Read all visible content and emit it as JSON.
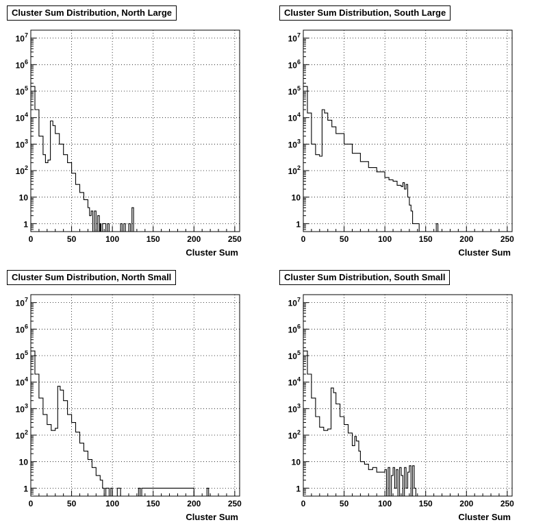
{
  "footer_text": "",
  "chart_data": [
    {
      "type": "line",
      "title": "Cluster Sum Distribution, North Large",
      "xlabel": "Cluster Sum",
      "ylabel": "",
      "xlim": [
        0,
        256
      ],
      "ylim": [
        0.5,
        20000000
      ],
      "yscale": "log",
      "grid": true,
      "x_ticks": [
        "0",
        "50",
        "100",
        "150",
        "200",
        "250"
      ],
      "y_ticks": [
        "1",
        "10",
        "10^2",
        "10^3",
        "10^4",
        "10^5",
        "10^6",
        "10^7"
      ],
      "series": [
        {
          "x": [
            0,
            5,
            10,
            15,
            18,
            21,
            24,
            27,
            30,
            35,
            40,
            45,
            50,
            55,
            60,
            65,
            70,
            72,
            74,
            76,
            78,
            80,
            82,
            84,
            85,
            86,
            88,
            90,
            92,
            94,
            96,
            98,
            100,
            102,
            104,
            106,
            108,
            110,
            112,
            114,
            116,
            118,
            120,
            122,
            124,
            126
          ],
          "y": [
            150000,
            20000,
            2000,
            400,
            200,
            250,
            7500,
            5000,
            2500,
            1000,
            400,
            200,
            80,
            30,
            15,
            8,
            4,
            2,
            3,
            0.5,
            3,
            0.5,
            2,
            0.5,
            1,
            0.5,
            1,
            1,
            0.5,
            1,
            0.5,
            0.5,
            0.5,
            0.5,
            0.5,
            0.5,
            0.5,
            1,
            0.5,
            1,
            0.5,
            0.5,
            1,
            0.5,
            4,
            0.5
          ]
        }
      ]
    },
    {
      "type": "line",
      "title": "Cluster Sum Distribution, South Large",
      "xlabel": "Cluster Sum",
      "ylabel": "",
      "xlim": [
        0,
        256
      ],
      "ylim": [
        0.5,
        20000000
      ],
      "yscale": "log",
      "grid": true,
      "x_ticks": [
        "0",
        "50",
        "100",
        "150",
        "200",
        "250"
      ],
      "y_ticks": [
        "1",
        "10",
        "10^2",
        "10^3",
        "10^4",
        "10^5",
        "10^6",
        "10^7"
      ],
      "series": [
        {
          "x": [
            0,
            5,
            10,
            15,
            20,
            23,
            26,
            30,
            35,
            40,
            50,
            60,
            70,
            80,
            90,
            100,
            105,
            110,
            115,
            120,
            122,
            124,
            126,
            128,
            130,
            132,
            134,
            136,
            138,
            140,
            142,
            145,
            150,
            155,
            160,
            163,
            165
          ],
          "y": [
            150000,
            15000,
            1000,
            400,
            350,
            20000,
            15000,
            8000,
            4500,
            2500,
            1000,
            450,
            220,
            130,
            90,
            55,
            45,
            40,
            28,
            25,
            35,
            20,
            30,
            10,
            5,
            3,
            1,
            1,
            1,
            1,
            0.5,
            0.5,
            0.5,
            0.5,
            0.5,
            1,
            0.5
          ]
        }
      ]
    },
    {
      "type": "line",
      "title": "Cluster Sum Distribution, North Small",
      "xlabel": "Cluster Sum",
      "ylabel": "",
      "xlim": [
        0,
        256
      ],
      "ylim": [
        0.5,
        20000000
      ],
      "yscale": "log",
      "grid": true,
      "x_ticks": [
        "0",
        "50",
        "100",
        "150",
        "200",
        "250"
      ],
      "y_ticks": [
        "1",
        "10",
        "10^2",
        "10^3",
        "10^4",
        "10^5",
        "10^6",
        "10^7"
      ],
      "series": [
        {
          "x": [
            0,
            5,
            10,
            15,
            20,
            25,
            30,
            33,
            36,
            40,
            45,
            50,
            55,
            60,
            65,
            70,
            75,
            80,
            85,
            88,
            90,
            92,
            94,
            96,
            98,
            100,
            102,
            104,
            106,
            110,
            115,
            130,
            132,
            134,
            136,
            200,
            214,
            216,
            218
          ],
          "y": [
            150000,
            20000,
            2500,
            600,
            250,
            150,
            180,
            7000,
            5000,
            2000,
            600,
            300,
            130,
            50,
            25,
            12,
            6,
            3,
            2,
            1,
            0.5,
            1,
            1,
            0.5,
            1,
            0.5,
            0.5,
            0.5,
            1,
            0.5,
            0.5,
            0.5,
            1,
            0.5,
            1,
            0.5,
            0.5,
            1,
            0.5
          ]
        }
      ]
    },
    {
      "type": "line",
      "title": "Cluster Sum Distribution, South Small",
      "xlabel": "Cluster Sum",
      "ylabel": "",
      "xlim": [
        0,
        256
      ],
      "ylim": [
        0.5,
        20000000
      ],
      "yscale": "log",
      "grid": true,
      "x_ticks": [
        "0",
        "50",
        "100",
        "150",
        "200",
        "250"
      ],
      "y_ticks": [
        "1",
        "10",
        "10^2",
        "10^3",
        "10^4",
        "10^5",
        "10^6",
        "10^7"
      ],
      "series": [
        {
          "x": [
            0,
            5,
            10,
            15,
            20,
            25,
            30,
            34,
            37,
            40,
            45,
            50,
            55,
            60,
            63,
            65,
            68,
            70,
            75,
            80,
            85,
            90,
            95,
            100,
            102,
            104,
            106,
            108,
            110,
            112,
            114,
            116,
            118,
            120,
            122,
            124,
            126,
            128,
            130,
            132,
            134,
            136,
            138
          ],
          "y": [
            150000,
            20000,
            2500,
            500,
            200,
            150,
            170,
            6000,
            4000,
            1500,
            500,
            250,
            120,
            40,
            90,
            60,
            25,
            10,
            8,
            5,
            6,
            4,
            4,
            5,
            0.5,
            6,
            0.5,
            3,
            6,
            1,
            5,
            0.5,
            6,
            3,
            0.5,
            6,
            1,
            4,
            7,
            0.5,
            7,
            1,
            0.5
          ]
        }
      ]
    }
  ]
}
